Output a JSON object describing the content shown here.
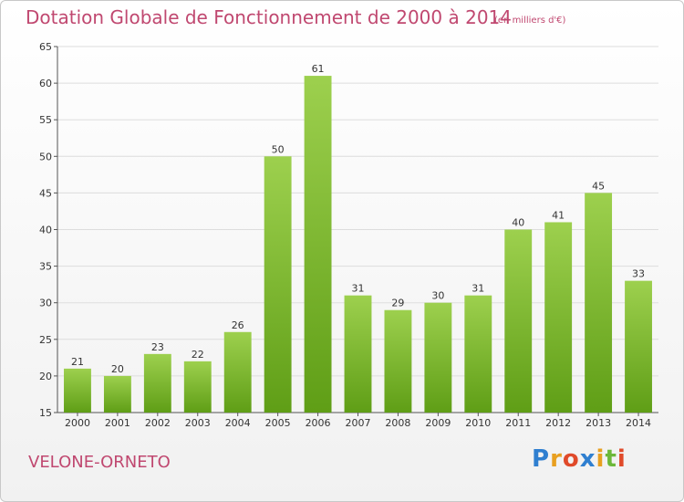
{
  "chart_data": {
    "type": "bar",
    "title": "Dotation Globale de Fonctionnement de 2000 à 2014",
    "subtitle": "(en milliers d'€)",
    "categories": [
      "2000",
      "2001",
      "2002",
      "2003",
      "2004",
      "2005",
      "2006",
      "2007",
      "2008",
      "2009",
      "2010",
      "2011",
      "2012",
      "2013",
      "2014"
    ],
    "values": [
      21,
      20,
      23,
      22,
      26,
      50,
      61,
      31,
      29,
      30,
      31,
      40,
      41,
      45,
      33
    ],
    "ylim": [
      15,
      65
    ],
    "yticks": [
      15,
      20,
      25,
      30,
      35,
      40,
      45,
      50,
      55,
      60,
      65
    ],
    "grid": true,
    "bar_color_top": "#9dd04e",
    "bar_color_bottom": "#5f9e16"
  },
  "footer": {
    "commune": "VELONE-ORNETO",
    "logo_text": "Proxiti"
  },
  "colors": {
    "title": "#c04870",
    "grid": "#dddddd",
    "axis": "#555555"
  }
}
